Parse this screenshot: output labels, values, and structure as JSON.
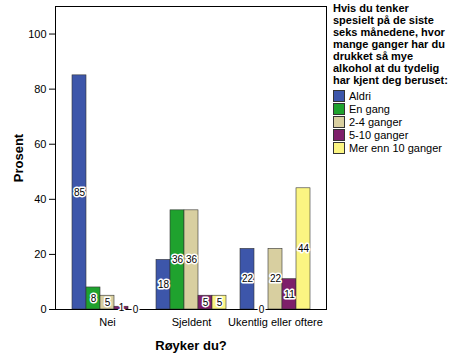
{
  "chart_data": {
    "type": "bar",
    "x_label": "Røyker du?",
    "y_label": "Prosent",
    "categories": [
      "Nei",
      "Sjeldent",
      "Ukentlig eller oftere"
    ],
    "series": [
      {
        "name": "Aldri",
        "color": "#3d56aa",
        "values": [
          85,
          18,
          22
        ]
      },
      {
        "name": "En gang",
        "color": "#1fa22e",
        "values": [
          8,
          36,
          0
        ]
      },
      {
        "name": "2-4 ganger",
        "color": "#d8cfa0",
        "values": [
          5,
          36,
          22
        ]
      },
      {
        "name": "5-10 ganger",
        "color": "#7e1f6a",
        "values": [
          1,
          5,
          11
        ]
      },
      {
        "name": "Mer enn 10 ganger",
        "color": "#fbf582",
        "values": [
          0,
          5,
          44
        ]
      }
    ],
    "ylim": [
      0,
      110
    ],
    "yticks": [
      0,
      20,
      40,
      60,
      80,
      100
    ],
    "data_labels": true,
    "legend": "right",
    "legend_title": "Hvis du tenker spesielt på de siste seks månedene, hvor mange ganger har du drukket så mye alkohol at du tydelig har kjent deg beruset:"
  }
}
